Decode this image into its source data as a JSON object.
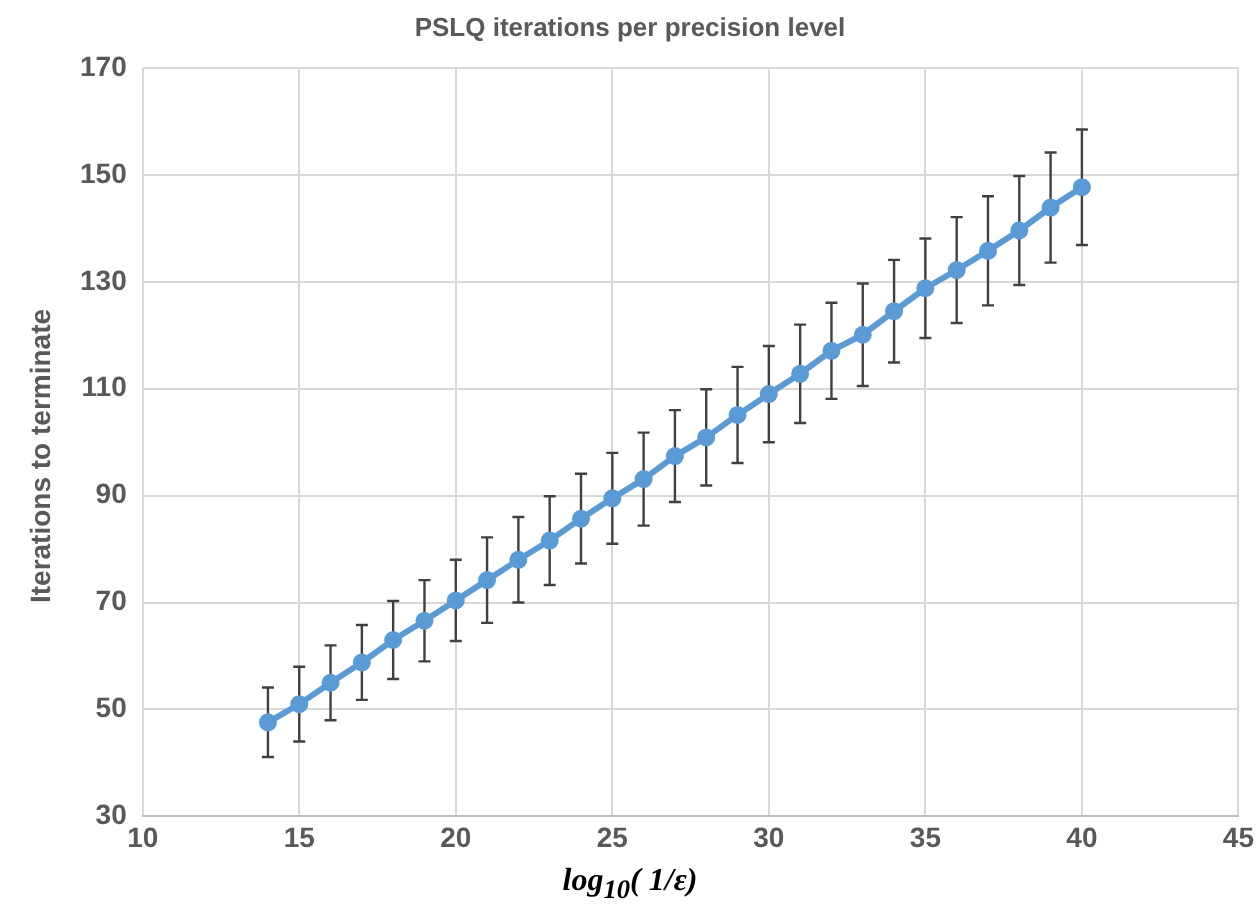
{
  "chart_data": {
    "type": "line",
    "title": "PSLQ iterations per precision level",
    "xlabel": "log$_{10}$( 1/ε)",
    "ylabel": "Iterations to terminate",
    "x": [
      14,
      15,
      16,
      17,
      18,
      19,
      20,
      21,
      22,
      23,
      24,
      25,
      26,
      27,
      28,
      29,
      30,
      31,
      32,
      33,
      34,
      35,
      36,
      37,
      38,
      39,
      40
    ],
    "series": [
      {
        "color": "#5b9bd5",
        "values": [
          47.6,
          51.0,
          55.0,
          58.8,
          63.0,
          66.6,
          70.4,
          74.2,
          78.0,
          81.6,
          85.7,
          89.5,
          93.1,
          97.4,
          100.9,
          105.1,
          109.0,
          112.8,
          117.1,
          120.1,
          124.5,
          128.8,
          132.2,
          135.8,
          139.6,
          143.9,
          147.7
        ],
        "errors": [
          6.5,
          7,
          7,
          7,
          7.3,
          7.6,
          7.6,
          8,
          8,
          8.3,
          8.4,
          8.5,
          8.7,
          8.6,
          9,
          9,
          9,
          9.2,
          9,
          9.6,
          9.6,
          9.3,
          9.9,
          10.2,
          10.2,
          10.3,
          10.8
        ]
      }
    ],
    "xlim": [
      10,
      45
    ],
    "xticks": [
      10,
      15,
      20,
      25,
      30,
      35,
      40,
      45
    ],
    "ylim": [
      30,
      170
    ],
    "yticks": [
      30,
      50,
      70,
      90,
      110,
      130,
      150,
      170
    ],
    "grid": true,
    "legend": false,
    "marker": "circle",
    "line_style": "solid"
  }
}
